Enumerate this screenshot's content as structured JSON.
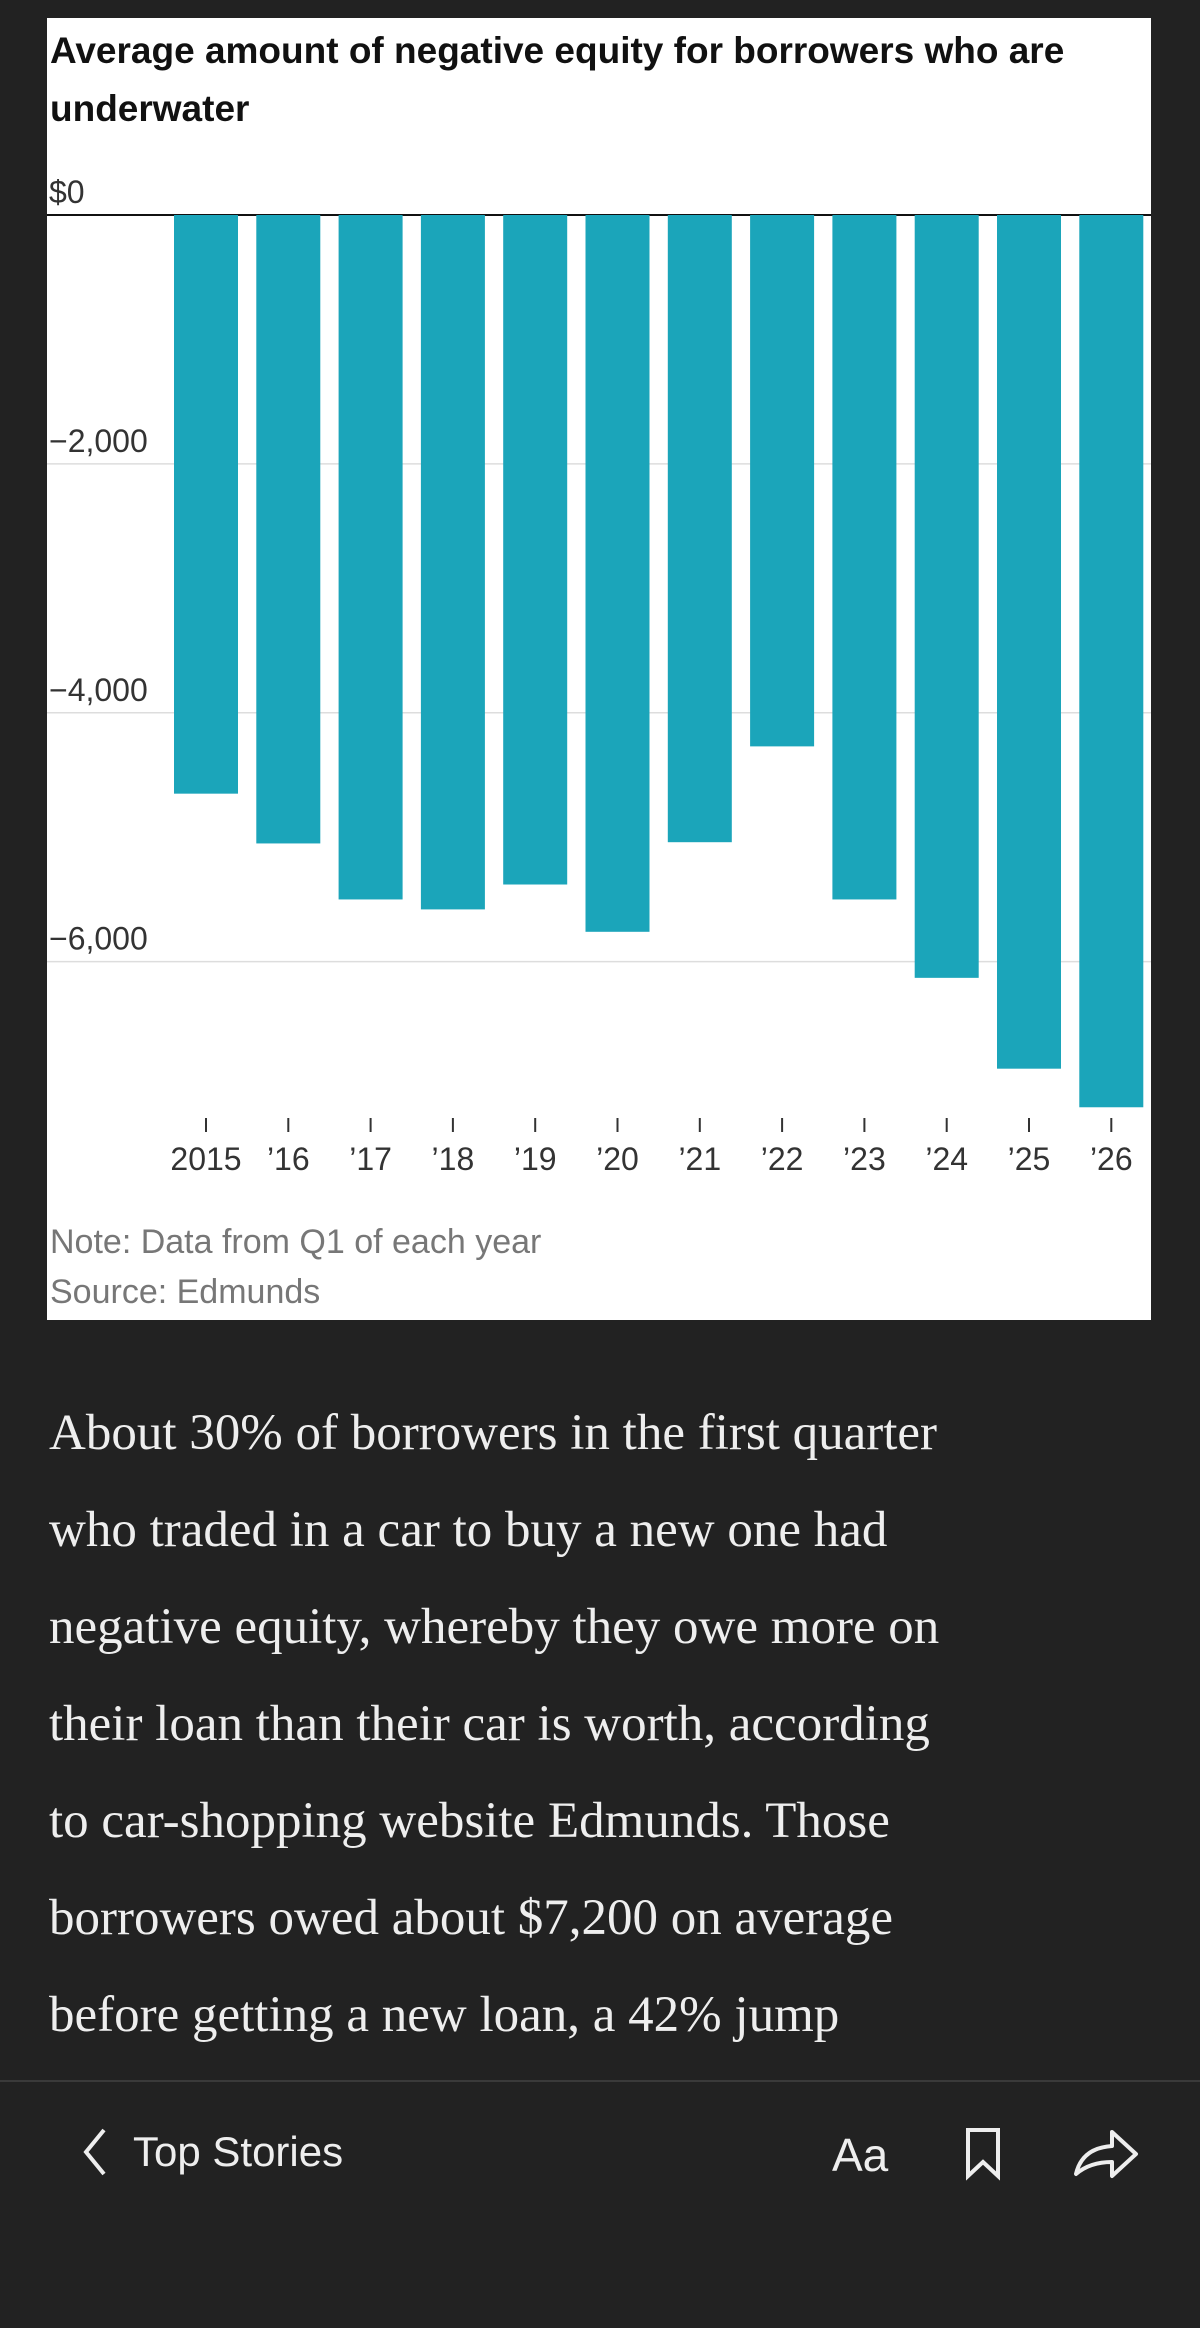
{
  "chart_data": {
    "type": "bar",
    "title": "Average amount of negative equity for borrowers who are underwater",
    "categories": [
      "2015",
      "’16",
      "’17",
      "’18",
      "’19",
      "’20",
      "’21",
      "’22",
      "’23",
      "’24",
      "’25",
      "’26"
    ],
    "values": [
      -4650,
      -5050,
      -5500,
      -5580,
      -5380,
      -5760,
      -5040,
      -4270,
      -5500,
      -6130,
      -6860,
      -7170
    ],
    "color": "#1ba5ba",
    "ylim": [
      -7200,
      0
    ],
    "yticks": [
      {
        "value": 0,
        "label": "$0"
      },
      {
        "value": -2000,
        "label": "−2,000"
      },
      {
        "value": -4000,
        "label": "−4,000"
      },
      {
        "value": -6000,
        "label": "−6,000"
      }
    ],
    "grid": true,
    "notes": [
      "Note: Data from Q1 of each year",
      "Source: Edmunds"
    ]
  },
  "article": {
    "lines": [
      "About 30% of borrowers in the first quarter",
      "who traded in a car to buy a new one had",
      "negative equity, whereby they owe more on",
      "their loan than their car is worth, according",
      "to car-shopping website Edmunds. Those",
      "borrowers owed about $7,200 on average",
      "before getting a new loan, a 42% jump"
    ]
  },
  "nav": {
    "back": "Top Stories",
    "font_button": "Aa"
  }
}
